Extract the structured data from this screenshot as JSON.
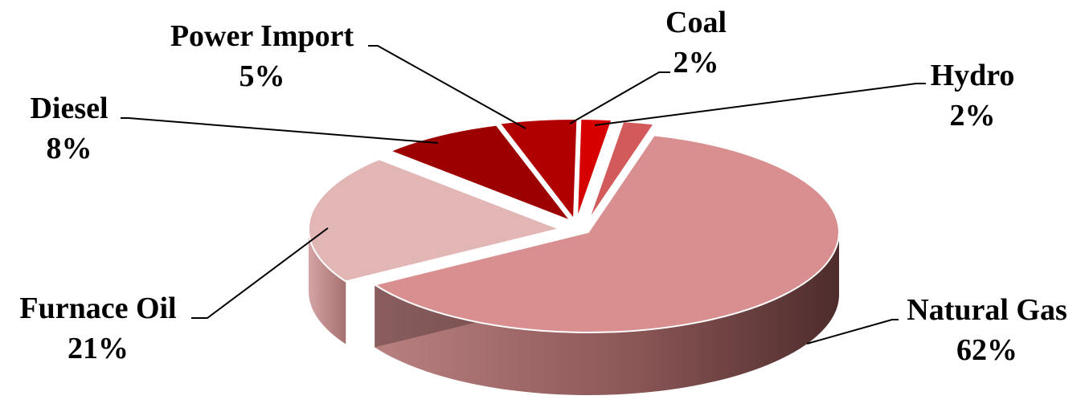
{
  "chart_data": {
    "type": "pie",
    "title": "",
    "style": "3d-exploded",
    "categories": [
      "Hydro",
      "Natural Gas",
      "Furnace Oil",
      "Diesel",
      "Power Import",
      "Coal"
    ],
    "values": [
      2,
      62,
      21,
      8,
      5,
      2
    ],
    "data_labels": [
      "2%",
      "62%",
      "21%",
      "8%",
      "5%",
      "2%"
    ],
    "colors": [
      "#d35a5a",
      "#d98f8f",
      "#e3b6b6",
      "#9c0000",
      "#b00000",
      "#d60000"
    ],
    "legend": "none (category labels with leader lines)"
  }
}
